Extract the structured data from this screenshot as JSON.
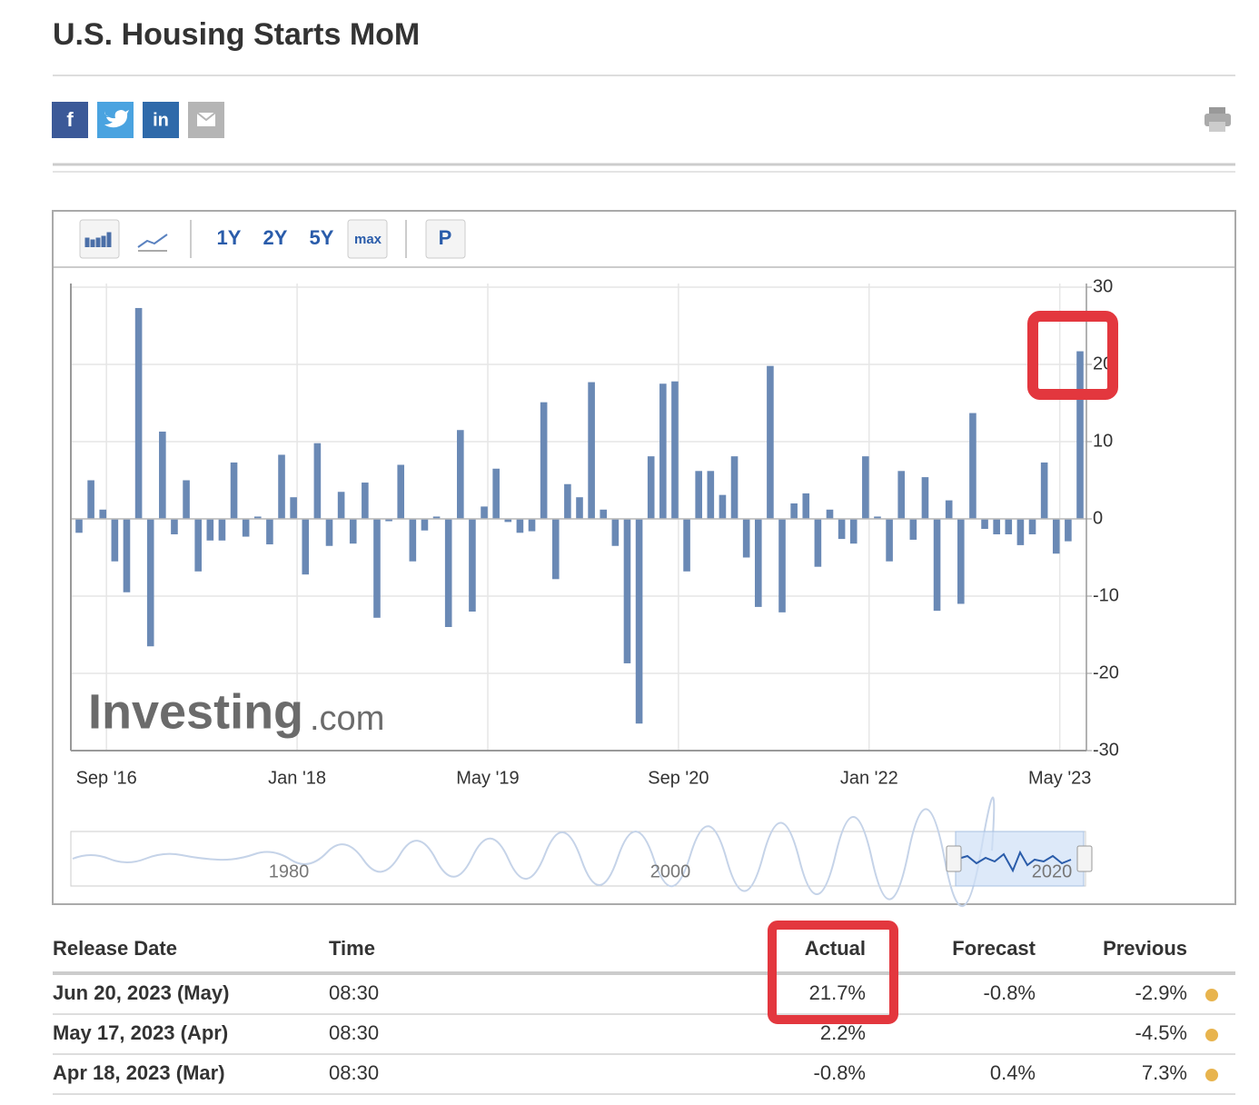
{
  "header": {
    "title": "U.S. Housing Starts MoM",
    "share": [
      "f",
      "in"
    ]
  },
  "toolbar": {
    "ranges": [
      "1Y",
      "2Y",
      "5Y",
      "max"
    ],
    "extra": "P"
  },
  "chart_data": {
    "type": "bar",
    "color": "#6a89b5",
    "grid": true,
    "categories": [
      null,
      null,
      null,
      null,
      "Sep '16",
      null,
      null,
      null,
      null,
      null,
      null,
      null,
      null,
      null,
      null,
      null,
      null,
      null,
      null,
      null,
      "Jan '18",
      null,
      null,
      null,
      null,
      null,
      null,
      null,
      null,
      null,
      null,
      null,
      null,
      null,
      null,
      null,
      "May '19",
      null,
      null,
      null,
      null,
      null,
      null,
      null,
      null,
      null,
      null,
      null,
      null,
      null,
      null,
      null,
      "Sep '20",
      null,
      null,
      null,
      null,
      null,
      null,
      null,
      null,
      null,
      null,
      null,
      null,
      null,
      null,
      null,
      "Jan '22",
      null,
      null,
      null,
      null,
      null,
      null,
      null,
      null,
      null,
      null,
      null,
      null,
      null,
      null,
      null,
      "May '23"
    ],
    "values": [
      -1.8,
      5,
      1.2,
      -5.5,
      -9.5,
      27.3,
      -16.5,
      11.3,
      -2,
      5,
      -6.8,
      -2.8,
      -2.8,
      7.3,
      -2.3,
      0.3,
      -3.3,
      8.3,
      2.8,
      -7.2,
      9.8,
      -3.5,
      3.5,
      -3.2,
      4.7,
      -12.8,
      -0.3,
      7,
      -5.5,
      -1.5,
      0.3,
      -14,
      11.5,
      -12,
      1.6,
      6.5,
      -0.4,
      -1.8,
      -1.6,
      15.1,
      -7.8,
      4.5,
      2.8,
      17.7,
      1.2,
      -3.5,
      -18.7,
      -26.5,
      8.1,
      17.5,
      17.8,
      -6.8,
      6.2,
      6.2,
      3.1,
      8.1,
      -5,
      -11.4,
      19.8,
      -12.1,
      2,
      3.3,
      -6.2,
      1.2,
      -2.6,
      -3.2,
      8.1,
      0.3,
      -5.5,
      6.2,
      -2.7,
      5.4,
      -11.9,
      2.4,
      -11,
      13.7,
      -1.3,
      -2,
      -2,
      -3.4,
      -2,
      7.3,
      -4.5,
      -2.9,
      21.7
    ],
    "ylim": [
      -30,
      30
    ],
    "yticks": [
      -30,
      -20,
      -10,
      0,
      10,
      20,
      30
    ]
  },
  "watermark": [
    "Investing",
    ".com"
  ],
  "navigator": {
    "labels": [
      "1980",
      "2000",
      "2020"
    ]
  },
  "table": {
    "headers": [
      "Release Date",
      "Time",
      "Actual",
      "Forecast",
      "Previous"
    ],
    "rows": [
      {
        "release_date": "Jun 20, 2023 (May)",
        "time": "08:30",
        "actual": "21.7%",
        "actual_color": "#3a9a2e",
        "forecast": "-0.8%",
        "previous": "-2.9%"
      },
      {
        "release_date": "May 17, 2023 (Apr)",
        "time": "08:30",
        "actual": "2.2%",
        "actual_color": "#222222",
        "forecast": null,
        "previous": "-4.5%"
      },
      {
        "release_date": "Apr 18, 2023 (Mar)",
        "time": "08:30",
        "actual": "-0.8%",
        "actual_color": "#e0302a",
        "forecast": "0.4%",
        "previous": "7.3%"
      }
    ],
    "previous_color": "#e0302a"
  }
}
